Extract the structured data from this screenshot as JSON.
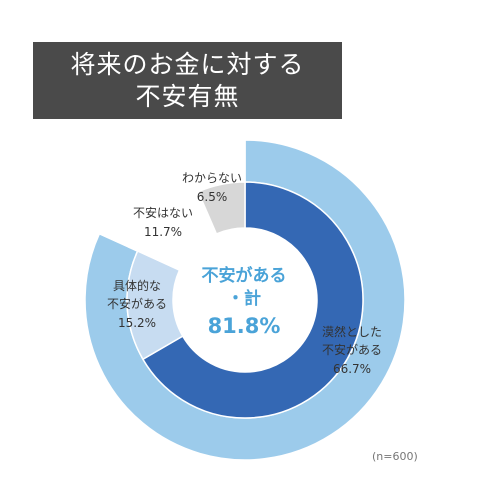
{
  "title": {
    "line1": "将来のお金に対する",
    "line2": "不安有無"
  },
  "sample_note": "(n=600)",
  "colors": {
    "outer_anxious": "#9ccbeb",
    "vague_anxious": "#3468b4",
    "specific_anxious": "#c7dcf1",
    "no_anxiety": "#ffffff",
    "dont_know": "#d7d7d7",
    "center_text": "#4aa3d8"
  },
  "chart_data": {
    "type": "pie",
    "title": "将来のお金に対する不安有無",
    "n": 600,
    "inner_ring": [
      {
        "label_lines": [
          "漠然とした",
          "不安がある"
        ],
        "value": 66.7,
        "value_label": "66.7%",
        "color": "#3468b4"
      },
      {
        "label_lines": [
          "具体的な",
          "不安がある"
        ],
        "value": 15.2,
        "value_label": "15.2%",
        "color": "#c7dcf1"
      },
      {
        "label_lines": [
          "不安はない"
        ],
        "value": 11.7,
        "value_label": "11.7%",
        "color": "#ffffff"
      },
      {
        "label_lines": [
          "わからない"
        ],
        "value": 6.5,
        "value_label": "6.5%",
        "color": "#d7d7d7"
      }
    ],
    "outer_ring": [
      {
        "label": "不安がある・計",
        "value": 81.8,
        "color": "#9ccbeb"
      },
      {
        "label": "",
        "value": 18.2,
        "color": "#ffffff"
      }
    ],
    "center": {
      "line1": "不安がある",
      "line2": "・計",
      "value_label": "81.8%"
    }
  }
}
